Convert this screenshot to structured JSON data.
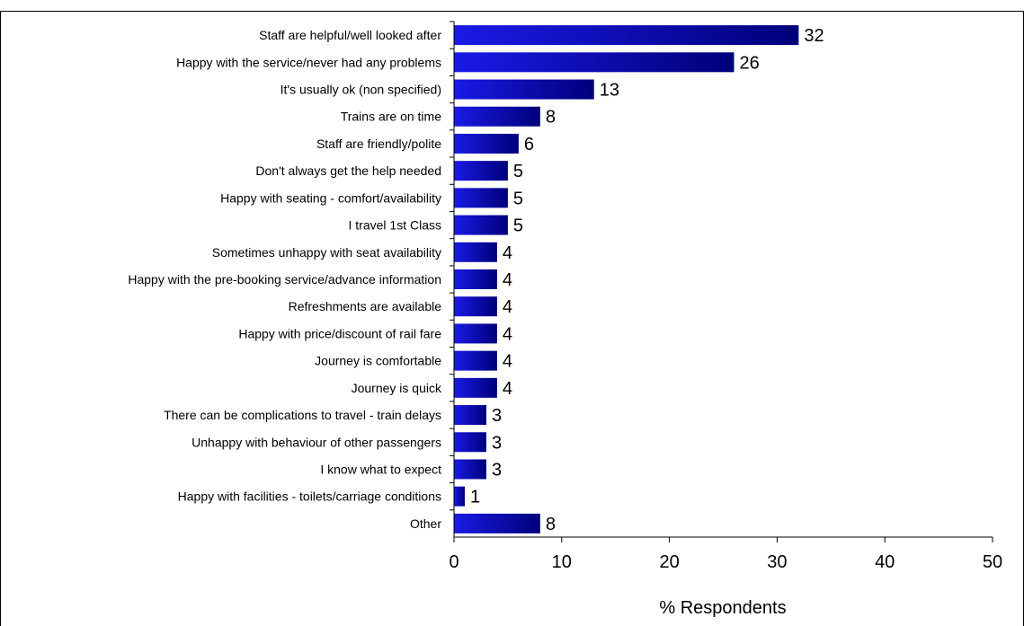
{
  "chart_data": {
    "type": "bar",
    "orientation": "horizontal",
    "title": "",
    "xlabel": "% Respondents",
    "ylabel": "",
    "xlim": [
      0,
      50
    ],
    "xticks": [
      0,
      10,
      20,
      30,
      40,
      50
    ],
    "grid": false,
    "legend": "none",
    "bar_color": "#1a1ae6",
    "bar_color_dark": "#00007a",
    "categories": [
      "Staff are helpful/well looked after",
      "Happy with the service/never had any problems",
      "It's usually ok (non specified)",
      "Trains are on time",
      "Staff are friendly/polite",
      "Don't always get the help needed",
      "Happy with seating - comfort/availability",
      "I travel 1st Class",
      "Sometimes unhappy with seat availability",
      "Happy with the pre-booking service/advance information",
      "Refreshments are available",
      "Happy with price/discount of rail fare",
      "Journey is comfortable",
      "Journey is quick",
      "There can be complications to travel - train delays",
      "Unhappy with behaviour of other passengers",
      "I know what to expect",
      "Happy with facilities - toilets/carriage conditions",
      "Other"
    ],
    "values": [
      32,
      26,
      13,
      8,
      6,
      5,
      5,
      5,
      4,
      4,
      4,
      4,
      4,
      4,
      3,
      3,
      3,
      1,
      8
    ]
  }
}
